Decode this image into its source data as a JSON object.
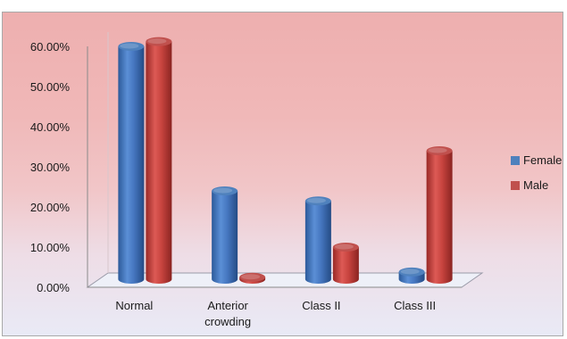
{
  "chart_data": {
    "type": "bar",
    "categories": [
      [
        "Normal"
      ],
      [
        "Anterior",
        "crowding"
      ],
      [
        "Class II"
      ],
      [
        "Class III"
      ]
    ],
    "series": [
      {
        "name": "Female",
        "values": [
          58.0,
          22.0,
          19.5,
          1.8
        ],
        "color": "#4f81bd"
      },
      {
        "name": "Male",
        "values": [
          59.2,
          0.5,
          8.0,
          32.0
        ],
        "color": "#c0504d"
      }
    ],
    "yticks": [
      "0.00%",
      "10.00%",
      "20.00%",
      "30.00%",
      "40.00%",
      "50.00%",
      "60.00%"
    ],
    "ylim": [
      0,
      60
    ],
    "legend_position": "right",
    "gridlines": false,
    "style": "3d-cylinder"
  }
}
